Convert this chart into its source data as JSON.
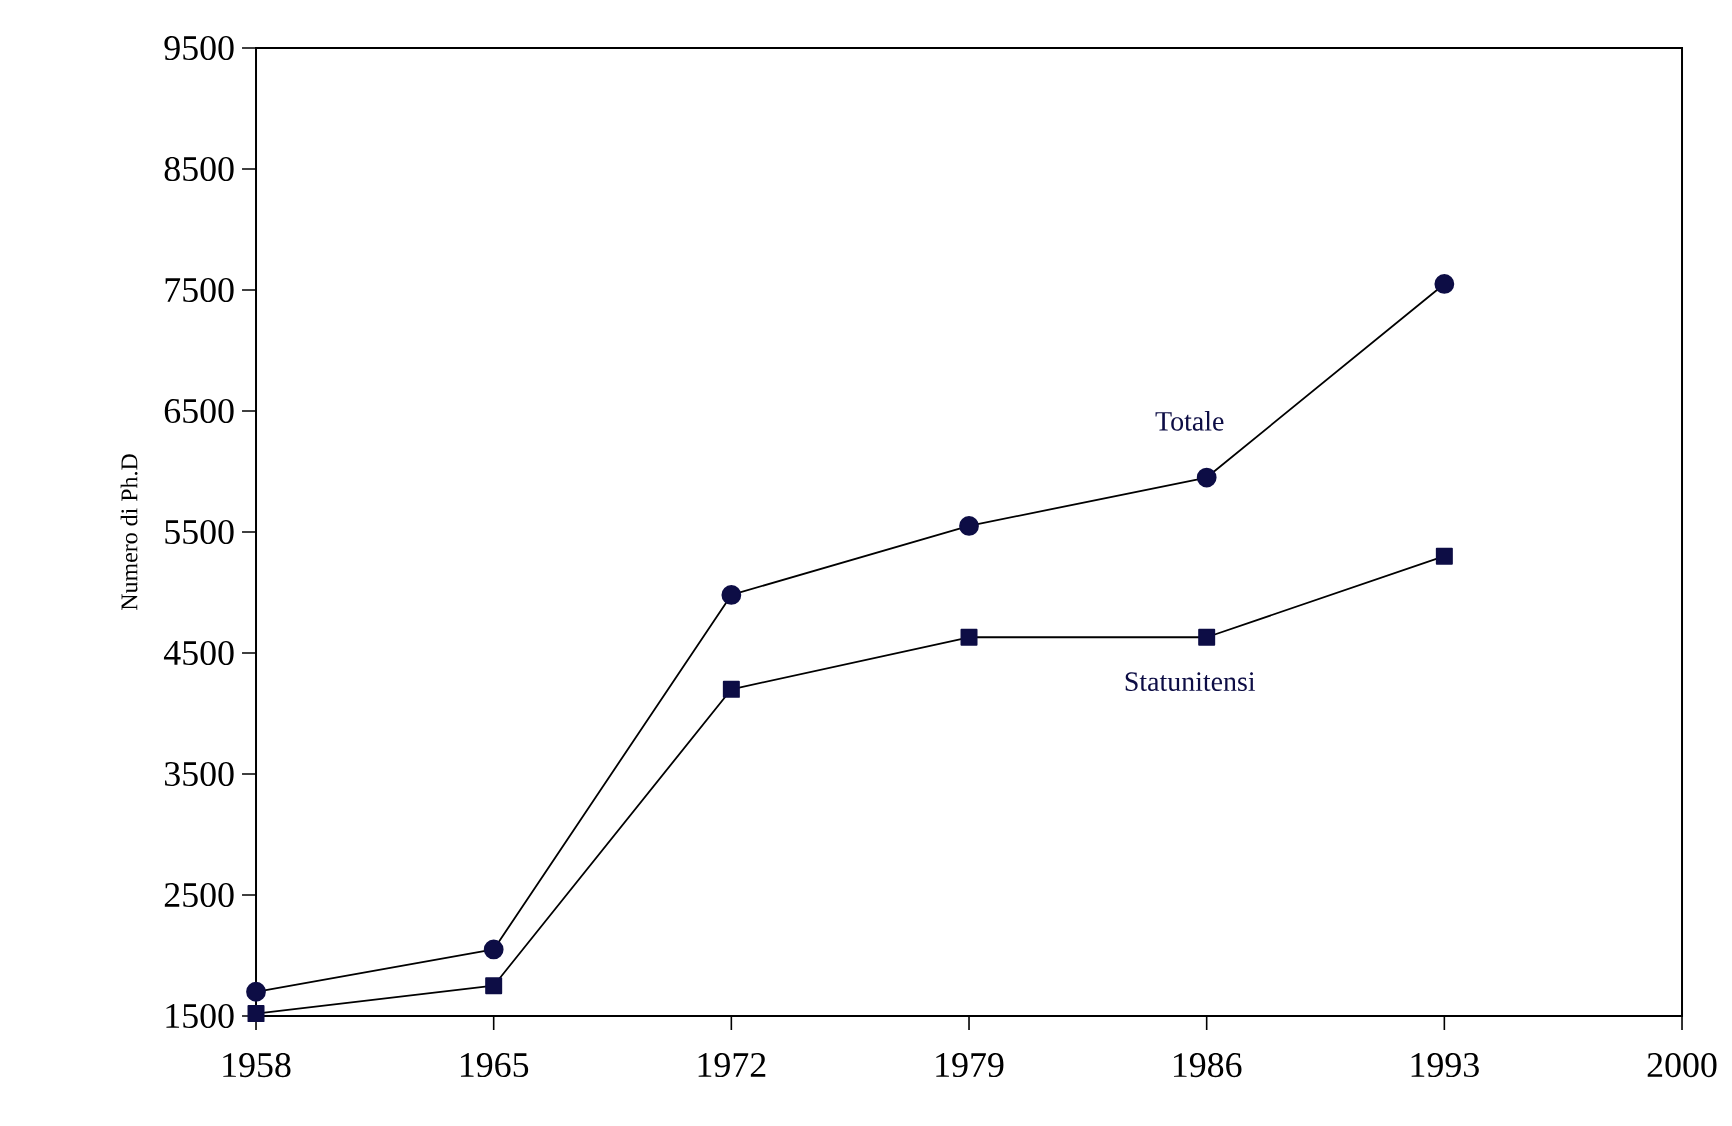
{
  "chart_data": {
    "type": "line",
    "ylabel": "Numero di Ph.D",
    "x": [
      1958,
      1965,
      1972,
      1979,
      1986,
      1993
    ],
    "series": [
      {
        "name": "Totale",
        "color": "#0d0d45",
        "marker": "circle",
        "values": [
          1700,
          2050,
          4980,
          5550,
          5950,
          7550
        ]
      },
      {
        "name": "Statunitensi",
        "color": "#0d0d45",
        "marker": "square",
        "values": [
          1520,
          1750,
          4200,
          4630,
          4630,
          5300
        ]
      }
    ],
    "xlim": [
      1958,
      2000
    ],
    "xticks": [
      1958,
      1965,
      1972,
      1979,
      1986,
      1993,
      2000
    ],
    "ylim": [
      1500,
      9500
    ],
    "yticks": [
      1500,
      2500,
      3500,
      4500,
      5500,
      6500,
      7500,
      8500,
      9500
    ],
    "grid": false,
    "legend": false,
    "line_style": "solid"
  }
}
